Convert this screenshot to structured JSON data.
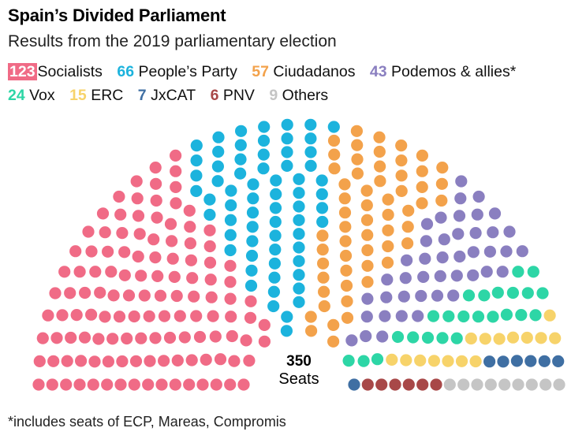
{
  "title": "Spain’s Divided Parliament",
  "subtitle": "Results from the 2019 parliamentary election",
  "footnote": "*includes seats of ECP, Mareas, Compromis",
  "chart_data": {
    "type": "parliament",
    "total_seats": 350,
    "center_value": "350",
    "center_label": "Seats",
    "series": [
      {
        "name": "Socialists",
        "value": 123,
        "color": "#f06b86"
      },
      {
        "name": "People’s Party",
        "value": 66,
        "color": "#1cb3dd"
      },
      {
        "name": "Ciudadanos",
        "value": 57,
        "color": "#f3a24b"
      },
      {
        "name": "Podemos & allies*",
        "value": 43,
        "color": "#8a7fc0"
      },
      {
        "name": "Vox",
        "value": 24,
        "color": "#2dd6a6"
      },
      {
        "name": "ERC",
        "value": 15,
        "color": "#f7d36a"
      },
      {
        "name": "JxCAT",
        "value": 7,
        "color": "#3f6fa3"
      },
      {
        "name": "PNV",
        "value": 6,
        "color": "#a84848"
      },
      {
        "name": "Others",
        "value": 9,
        "color": "#c5c5c5"
      }
    ]
  }
}
